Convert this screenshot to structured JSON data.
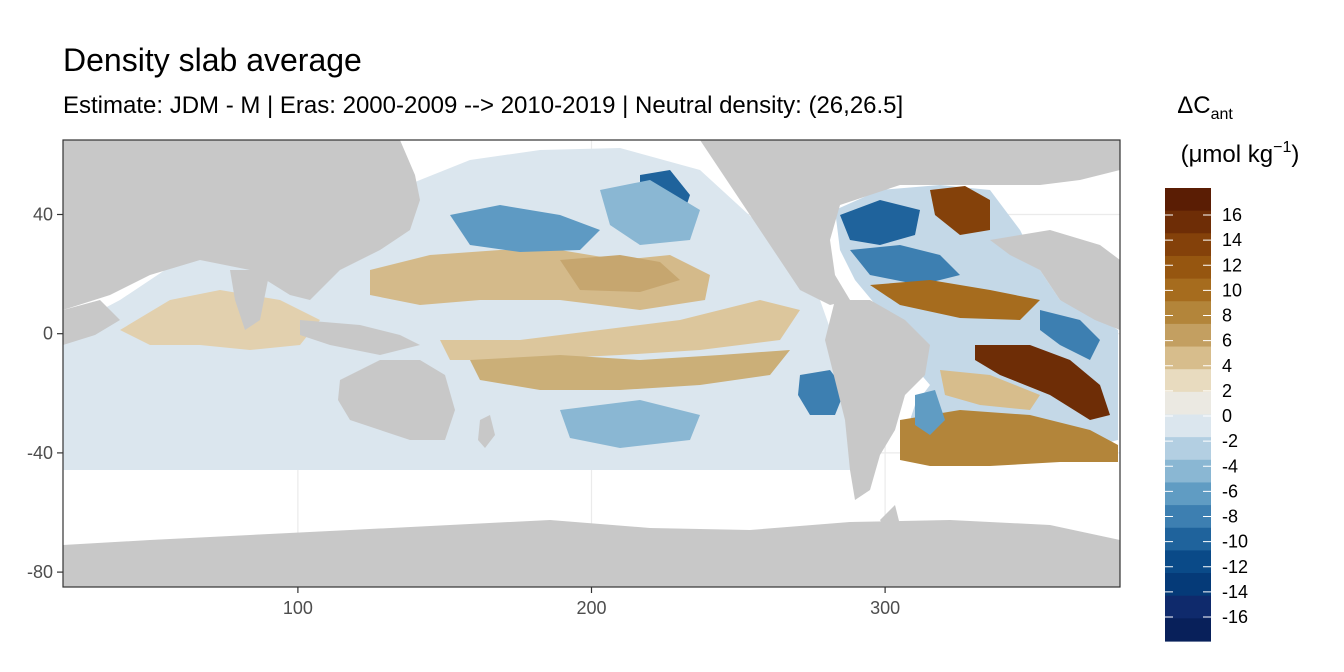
{
  "chart_data": {
    "type": "heatmap",
    "title": "Density slab average",
    "subtitle": "Estimate: JDM - M | Eras: 2000-2009 --> 2010-2019 | Neutral density: (26,26.5]",
    "xlabel": "",
    "ylabel": "",
    "xlim": [
      20,
      380
    ],
    "ylim": [
      -85,
      65
    ],
    "x_ticks": [
      "100",
      "200",
      "300"
    ],
    "x_tick_values": [
      100,
      200,
      300
    ],
    "y_ticks": [
      "40",
      "0",
      "-40",
      "-80"
    ],
    "y_tick_values": [
      40,
      0,
      -40,
      -80
    ],
    "grid": true,
    "legend": {
      "position": "right",
      "title_main": "ΔC",
      "title_sub": "ant",
      "units_open": "(μmol kg",
      "units_sup": "−1",
      "units_close": ")",
      "labels": [
        "16",
        "14",
        "12",
        "10",
        "8",
        "6",
        "4",
        "2",
        "0",
        "-2",
        "-4",
        "-6",
        "-8",
        "-10",
        "-12",
        "-14",
        "-16"
      ],
      "colors": [
        "#5a1d04",
        "#6e2d06",
        "#84410a",
        "#965610",
        "#a66c1e",
        "#b3853a",
        "#c39f61",
        "#d7bd8c",
        "#e8dbbf",
        "#ebe9e2",
        "#dbe6ee",
        "#b3cfe2",
        "#8ab7d3",
        "#609cc3",
        "#3d7fb1",
        "#1f639c",
        "#0a4a88",
        "#053a78",
        "#0f2a6c",
        "#08205a"
      ]
    },
    "colors": {
      "land": "#c8c8c8",
      "panel_border": "#333333",
      "grid": "#ebebeb"
    }
  }
}
